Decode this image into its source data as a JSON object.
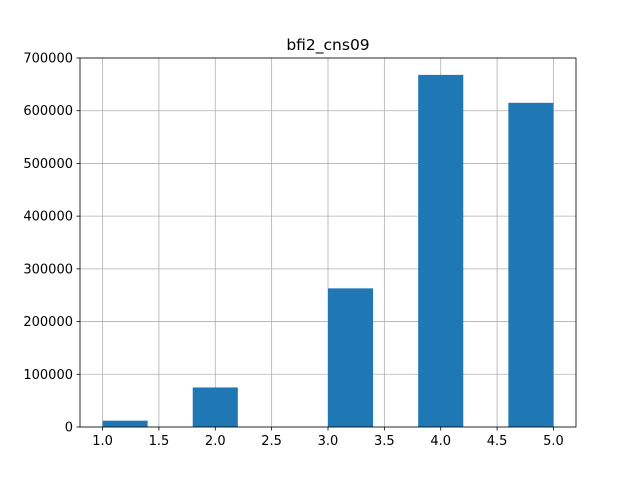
{
  "chart_data": {
    "type": "bar",
    "title": "bfi2_cns09",
    "xlabel": "",
    "ylabel": "",
    "bins": [
      {
        "x0": 1.0,
        "x1": 1.4,
        "value": 12000
      },
      {
        "x0": 1.4,
        "x1": 1.8,
        "value": 0
      },
      {
        "x0": 1.8,
        "x1": 2.2,
        "value": 75000
      },
      {
        "x0": 2.2,
        "x1": 2.6,
        "value": 0
      },
      {
        "x0": 2.6,
        "x1": 3.0,
        "value": 0
      },
      {
        "x0": 3.0,
        "x1": 3.4,
        "value": 263000
      },
      {
        "x0": 3.4,
        "x1": 3.8,
        "value": 0
      },
      {
        "x0": 3.8,
        "x1": 4.2,
        "value": 668000
      },
      {
        "x0": 4.2,
        "x1": 4.6,
        "value": 0
      },
      {
        "x0": 4.6,
        "x1": 5.0,
        "value": 615000
      }
    ],
    "xlim": [
      0.8,
      5.2
    ],
    "ylim": [
      0,
      700000
    ],
    "xticks": [
      1.0,
      1.5,
      2.0,
      2.5,
      3.0,
      3.5,
      4.0,
      4.5,
      5.0
    ],
    "xtick_labels": [
      "1.0",
      "1.5",
      "2.0",
      "2.5",
      "3.0",
      "3.5",
      "4.0",
      "4.5",
      "5.0"
    ],
    "yticks": [
      0,
      100000,
      200000,
      300000,
      400000,
      500000,
      600000,
      700000
    ],
    "ytick_labels": [
      "0",
      "100000",
      "200000",
      "300000",
      "400000",
      "500000",
      "600000",
      "700000"
    ],
    "grid": true,
    "bar_color": "#1f77b4",
    "grid_color": "#b0b0b0"
  }
}
